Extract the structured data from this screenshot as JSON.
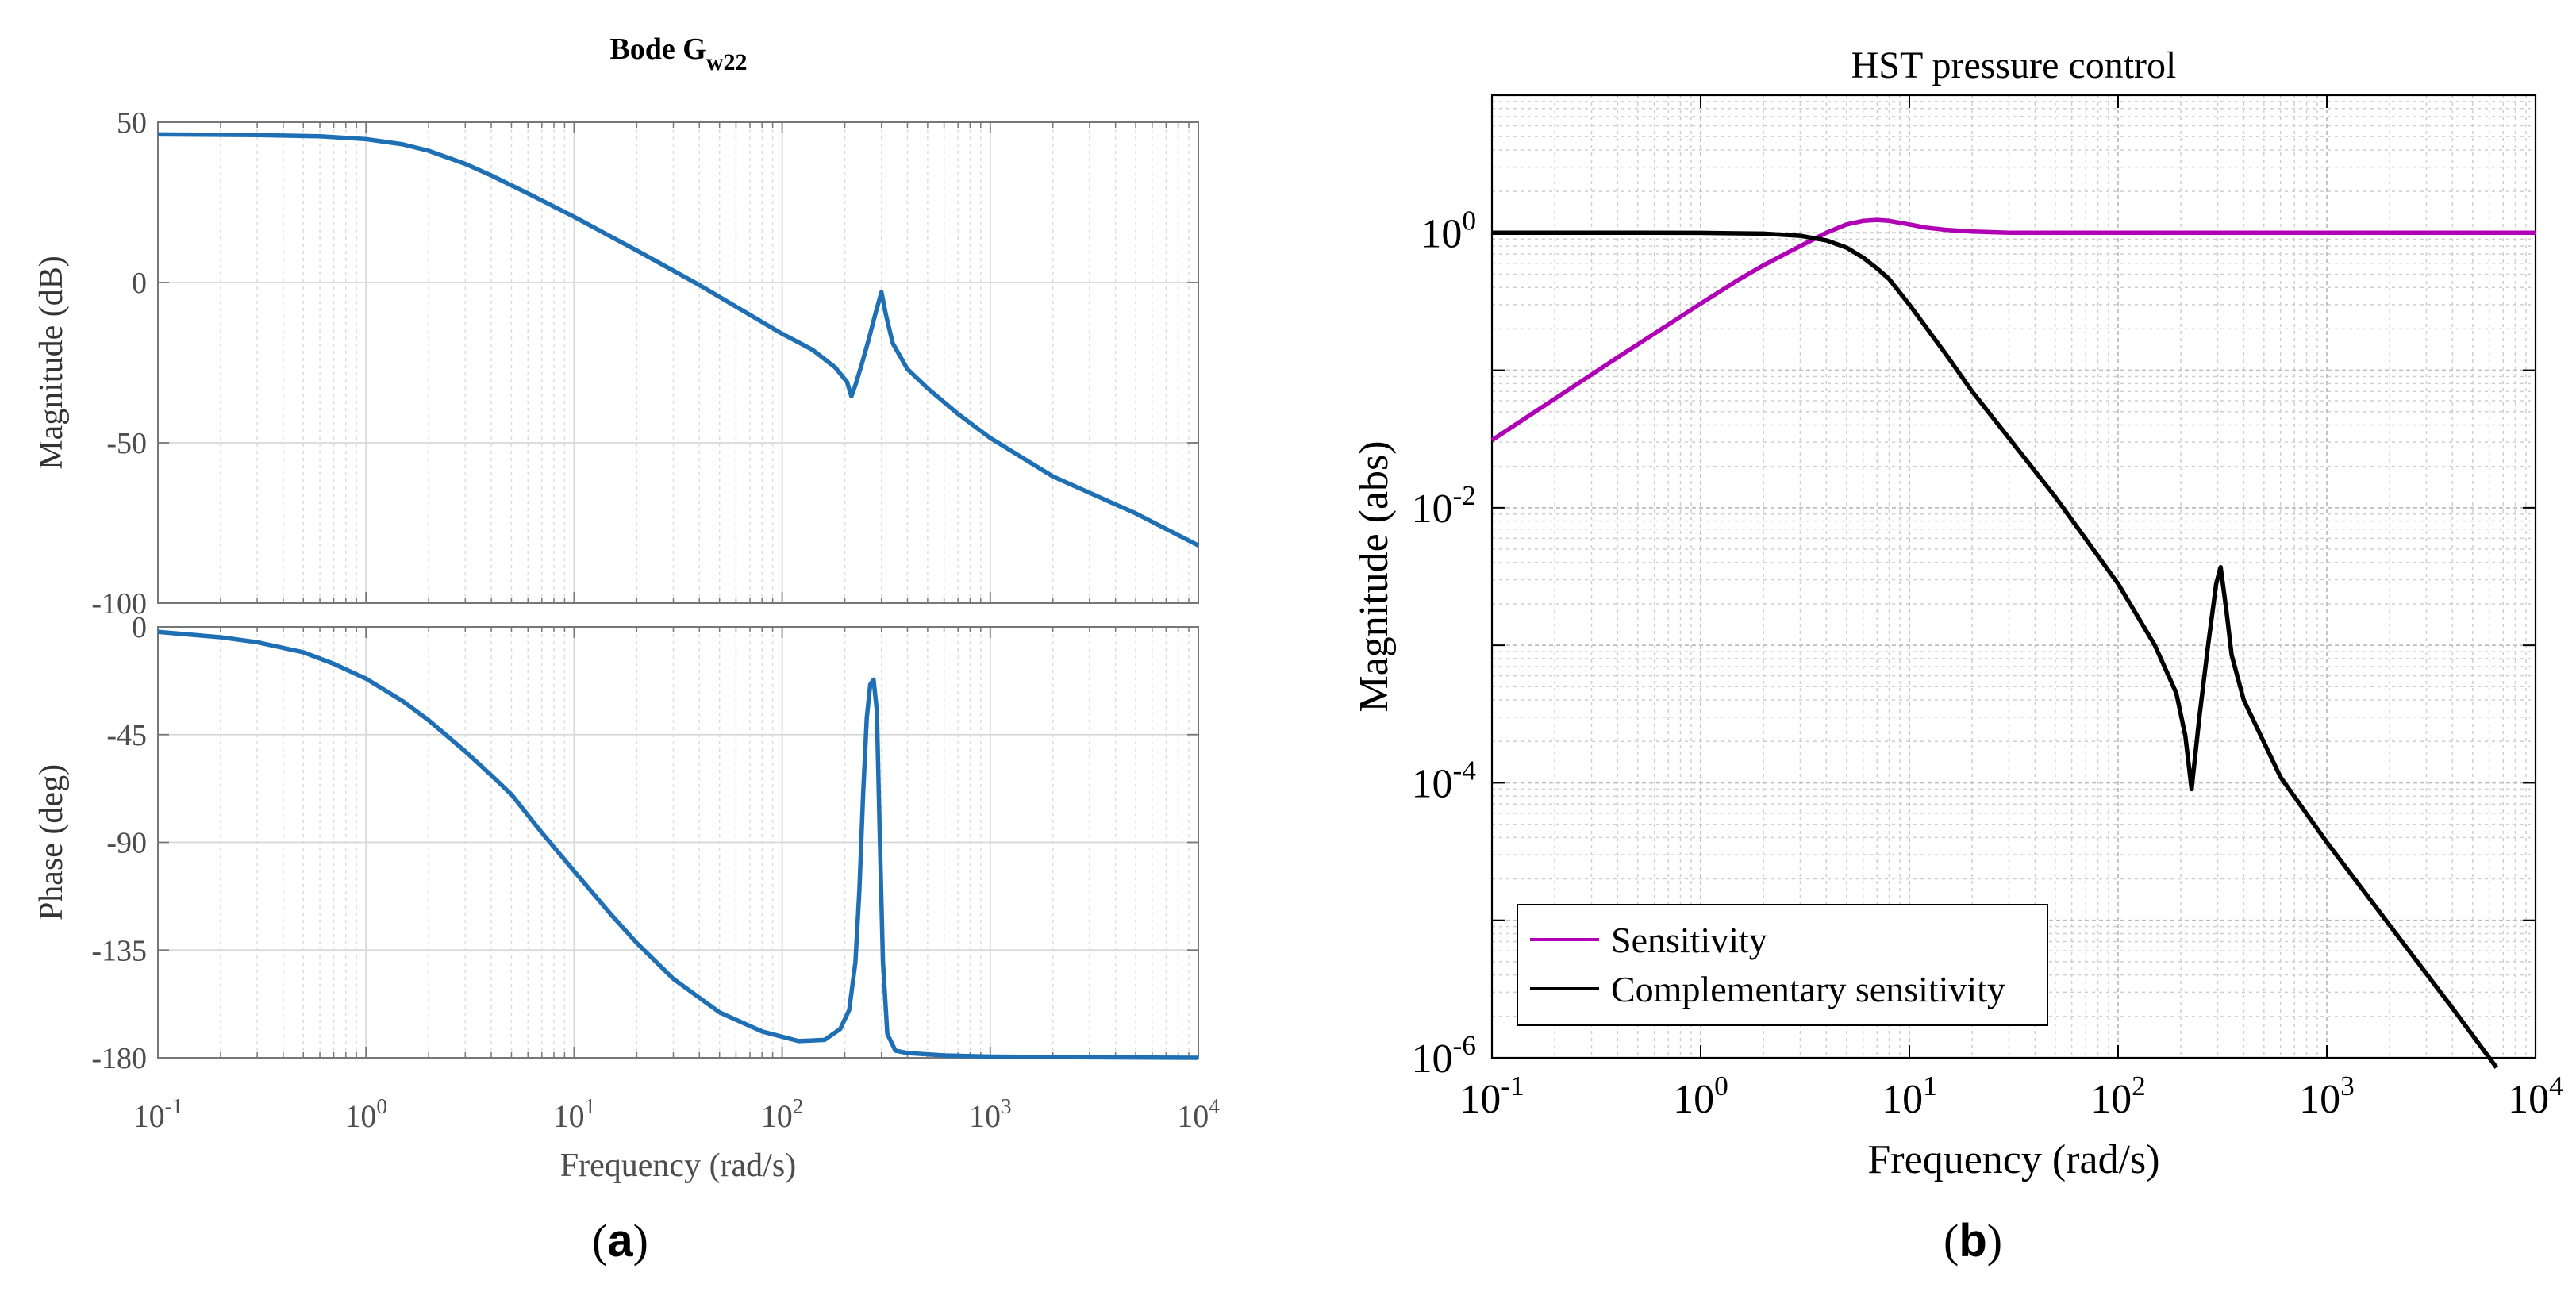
{
  "colors": {
    "bode": "#1f6fb4",
    "sensitivity": "#b000b5",
    "complementary": "#000000",
    "grid": "#d0d0d0",
    "bode_axis_text": "#4d4d4d"
  },
  "panel_labels": {
    "a": "a",
    "b": "b"
  },
  "chart_data": [
    {
      "id": "bode",
      "type": "line",
      "title": {
        "main": "Bode G",
        "subscript": "w22"
      },
      "xlabel": "Frequency   (rad/s)",
      "xscale": "log",
      "xlim": [
        0.1,
        10000
      ],
      "xticks": [
        {
          "base": "10",
          "exp": "-1"
        },
        {
          "base": "10",
          "exp": "0"
        },
        {
          "base": "10",
          "exp": "1"
        },
        {
          "base": "10",
          "exp": "2"
        },
        {
          "base": "10",
          "exp": "3"
        },
        {
          "base": "10",
          "exp": "4"
        }
      ],
      "magnitude": {
        "ylabel": "Magnitude (dB)",
        "ylim": [
          -100,
          50
        ],
        "yticks": [
          "50",
          "0",
          "-50",
          "-100"
        ],
        "x": [
          0.1,
          0.3,
          0.6,
          1,
          1.5,
          2,
          3,
          4,
          6,
          10,
          20,
          40,
          70,
          100,
          140,
          180,
          205,
          215,
          225,
          240,
          260,
          280,
          300,
          315,
          340,
          400,
          500,
          700,
          1000,
          2000,
          5000,
          10000
        ],
        "y": [
          46.2,
          46.0,
          45.6,
          44.7,
          43.1,
          41.1,
          37.0,
          33.4,
          27.8,
          20.5,
          10.0,
          -0.8,
          -10.1,
          -16.0,
          -21.0,
          -26.5,
          -31.0,
          -35.5,
          -32.0,
          -26.0,
          -18.0,
          -10.0,
          -3.0,
          -10.0,
          -19.0,
          -27.0,
          -33.0,
          -41.0,
          -48.5,
          -60.5,
          -72.0,
          -82.0
        ]
      },
      "phase": {
        "ylabel": "Phase (deg)",
        "ylim": [
          -180,
          0
        ],
        "yticks": [
          "0",
          "-45",
          "-90",
          "-135",
          "-180"
        ],
        "x": [
          0.1,
          0.2,
          0.3,
          0.5,
          0.7,
          1,
          1.5,
          2,
          3,
          4,
          5,
          7,
          10,
          15,
          20,
          30,
          50,
          80,
          120,
          160,
          190,
          210,
          225,
          235,
          245,
          255,
          265,
          275,
          285,
          295,
          305,
          320,
          350,
          400,
          600,
          1000,
          3000,
          10000
        ],
        "y": [
          -2.1,
          -4.3,
          -6.4,
          -10.6,
          -15.4,
          -21.6,
          -31.0,
          -39.0,
          -52.0,
          -62.0,
          -70.0,
          -86.0,
          -102.0,
          -120.0,
          -132.0,
          -147.0,
          -161.0,
          -169.0,
          -173.0,
          -172.5,
          -168.0,
          -160.0,
          -140.0,
          -110.0,
          -70.0,
          -38.0,
          -24.0,
          -22.0,
          -35.0,
          -90.0,
          -140.0,
          -170.0,
          -177.0,
          -178.0,
          -179.0,
          -179.5,
          -179.8,
          -180.0
        ]
      }
    },
    {
      "id": "sensitivity",
      "type": "line",
      "title": "HST pressure control",
      "xlabel": "Frequency (rad/s)",
      "ylabel": "Magnitude (abs)",
      "xscale": "log",
      "yscale": "log",
      "xlim": [
        0.1,
        10000
      ],
      "ylim": [
        1e-06,
        10
      ],
      "xticks": [
        {
          "base": "10",
          "exp": "-1"
        },
        {
          "base": "10",
          "exp": "0"
        },
        {
          "base": "10",
          "exp": "1"
        },
        {
          "base": "10",
          "exp": "2"
        },
        {
          "base": "10",
          "exp": "3"
        },
        {
          "base": "10",
          "exp": "4"
        }
      ],
      "yticks": [
        {
          "base": "10",
          "exp": "0"
        },
        {
          "base": "10",
          "exp": "-2"
        },
        {
          "base": "10",
          "exp": "-4"
        },
        {
          "base": "10",
          "exp": "-6"
        }
      ],
      "legend": {
        "position": "bottom-left"
      },
      "series": [
        {
          "name": "Sensitivity",
          "x": [
            0.1,
            0.2,
            0.4,
            0.7,
            1,
            1.5,
            2,
            3,
            4,
            5,
            6,
            7,
            8,
            10,
            12,
            15,
            20,
            30,
            50,
            100,
            1000,
            10000
          ],
          "y": [
            0.031,
            0.062,
            0.124,
            0.215,
            0.305,
            0.45,
            0.58,
            0.8,
            1.0,
            1.15,
            1.22,
            1.24,
            1.22,
            1.15,
            1.09,
            1.05,
            1.02,
            1.0,
            1.0,
            1.0,
            1.0,
            1.0
          ]
        },
        {
          "name": "Complementary sensitivity",
          "x": [
            0.1,
            0.5,
            1,
            2,
            3,
            4,
            5,
            6,
            7,
            8,
            10,
            15,
            20,
            50,
            100,
            150,
            190,
            210,
            225,
            245,
            270,
            295,
            310,
            330,
            350,
            400,
            600,
            1000,
            2000,
            4000,
            6500
          ],
          "y": [
            1.0,
            1.0,
            0.998,
            0.985,
            0.95,
            0.88,
            0.78,
            0.66,
            0.55,
            0.46,
            0.3,
            0.13,
            0.07,
            0.012,
            0.0028,
            0.001,
            0.00045,
            0.00022,
            9e-05,
            0.0003,
            0.001,
            0.0028,
            0.0037,
            0.0018,
            0.00085,
            0.0004,
            0.00011,
            3.7e-05,
            9.2e-06,
            2.3e-06,
            8.5e-07
          ]
        }
      ]
    }
  ]
}
